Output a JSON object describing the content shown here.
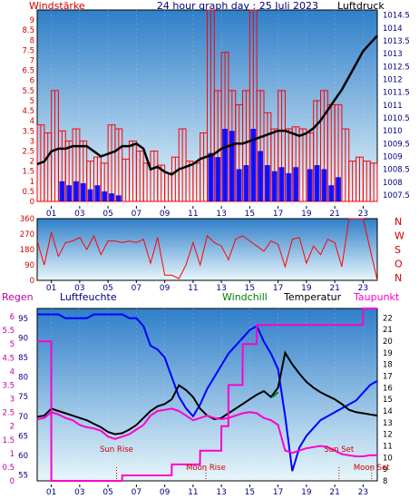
{
  "header": {
    "title": "24 hour graph day : 25 Juli 2023",
    "left_label": "Windstärke",
    "right_label": "Luftdruck"
  },
  "colors": {
    "panel_top": "#2f7fc9",
    "panel_bottom": "#e8f6fb",
    "red": "#ff0000",
    "blue": "#0000ff",
    "black": "#000000",
    "magenta": "#ff00cc",
    "green": "#008000",
    "darkred": "#cc0000",
    "axis_red": "#d00000",
    "axis_black": "#000080",
    "axis_magenta": "#c000a0"
  },
  "chart_data": [
    {
      "type": "line",
      "panel": "wind_pressure",
      "title": "24 hour graph day : 25 Juli 2023",
      "x_ticks": [
        "01",
        "03",
        "05",
        "07",
        "09",
        "11",
        "13",
        "15",
        "17",
        "19",
        "21",
        "23"
      ],
      "xlim": [
        0,
        24
      ],
      "y_left": {
        "label": "Windstärke",
        "ylim": [
          0,
          9.5
        ],
        "ticks": [
          "0",
          "0.5",
          "1",
          "1.5",
          "2",
          "2.5",
          "3",
          "3.5",
          "4",
          "4.5",
          "5",
          "5.5",
          "6",
          "6.5",
          "7",
          "7.5",
          "8",
          "8.5",
          "9"
        ]
      },
      "y_right": {
        "label": "Luftdruck",
        "ylim": [
          1007.25,
          1014.7
        ],
        "ticks": [
          "1007.5",
          "1008",
          "1008.5",
          "1009",
          "1009.5",
          "1010",
          "1010.5",
          "1011",
          "1011.5",
          "1012",
          "1012.5",
          "1013",
          "1013.5",
          "1014",
          "1014.5"
        ]
      },
      "series": [
        {
          "name": "Luftdruck",
          "color": "black",
          "x": [
            0.0,
            0.5,
            1.0,
            1.5,
            2.0,
            2.5,
            3.0,
            3.5,
            4.0,
            4.5,
            5.0,
            5.5,
            6.0,
            6.5,
            7.0,
            7.5,
            8.0,
            8.5,
            9.0,
            9.5,
            10.0,
            10.5,
            11.0,
            11.5,
            12.0,
            12.5,
            13.0,
            13.5,
            14.0,
            14.5,
            15.0,
            15.5,
            16.0,
            16.5,
            17.0,
            17.5,
            18.0,
            18.5,
            19.0,
            19.5,
            20.0,
            20.5,
            21.0,
            21.5,
            22.0,
            22.5,
            23.0,
            23.5,
            24.0
          ],
          "values": [
            1008.7,
            1008.8,
            1009.2,
            1009.3,
            1009.3,
            1009.4,
            1009.4,
            1009.4,
            1009.2,
            1009.0,
            1009.1,
            1009.2,
            1009.4,
            1009.4,
            1009.5,
            1009.3,
            1008.5,
            1008.6,
            1008.4,
            1008.3,
            1008.5,
            1008.6,
            1008.7,
            1008.9,
            1009.0,
            1009.1,
            1009.3,
            1009.4,
            1009.5,
            1009.5,
            1009.6,
            1009.7,
            1009.8,
            1009.9,
            1010.0,
            1010.0,
            1009.9,
            1009.8,
            1009.9,
            1010.1,
            1010.4,
            1010.8,
            1011.2,
            1011.6,
            1012.1,
            1012.6,
            1013.1,
            1013.4,
            1013.7
          ]
        },
        {
          "name": "Windstärke (Böen)",
          "color": "red",
          "x": [
            0.0,
            0.5,
            1.0,
            1.5,
            2.0,
            2.5,
            3.0,
            3.5,
            4.0,
            4.5,
            5.0,
            5.5,
            6.0,
            6.5,
            7.0,
            7.5,
            8.0,
            8.5,
            9.0,
            9.5,
            10.0,
            10.5,
            11.0,
            11.5,
            12.0,
            12.5,
            13.0,
            13.5,
            14.0,
            14.5,
            15.0,
            15.5,
            16.0,
            16.5,
            17.0,
            17.5,
            18.0,
            18.5,
            19.0,
            19.5,
            20.0,
            20.5,
            21.0,
            21.5,
            22.0,
            22.5,
            23.0,
            23.5
          ],
          "values": [
            3.8,
            3.4,
            5.5,
            3.5,
            3.0,
            3.6,
            3.0,
            2.0,
            2.2,
            1.9,
            3.8,
            3.6,
            2.1,
            3.0,
            2.5,
            1.9,
            2.5,
            1.8,
            1.4,
            2.2,
            3.6,
            2.0,
            1.9,
            3.4,
            9.5,
            5.5,
            7.4,
            5.5,
            4.8,
            5.5,
            9.5,
            5.5,
            4.4,
            3.6,
            5.5,
            3.6,
            3.7,
            3.6,
            3.4,
            5.0,
            5.5,
            4.8,
            4.8,
            3.6,
            2.0,
            2.2,
            2.0,
            1.9
          ]
        },
        {
          "name": "Windstärke (Mittel)",
          "color": "blue",
          "x": [
            0.0,
            0.5,
            1.0,
            1.5,
            2.0,
            2.5,
            3.0,
            3.5,
            4.0,
            4.5,
            5.0,
            5.5,
            6.0,
            6.5,
            7.0,
            7.5,
            8.0,
            8.5,
            9.0,
            9.5,
            10.0,
            10.5,
            11.0,
            11.5,
            12.0,
            12.5,
            13.0,
            13.5,
            14.0,
            14.5,
            15.0,
            15.5,
            16.0,
            16.5,
            17.0,
            17.5,
            18.0,
            18.5,
            19.0,
            19.5,
            20.0,
            20.5,
            21.0,
            21.5,
            22.0,
            22.5,
            23.0,
            23.5
          ],
          "values": [
            0,
            0,
            0,
            1.0,
            0.8,
            1.0,
            0.9,
            0.6,
            0.8,
            0.5,
            0.4,
            0.3,
            0,
            0,
            0,
            0,
            0,
            0,
            0,
            0,
            0,
            0,
            0,
            0,
            2.4,
            2.2,
            3.6,
            3.5,
            1.6,
            1.8,
            3.6,
            2.5,
            1.8,
            1.5,
            1.7,
            1.4,
            1.7,
            0,
            1.6,
            1.8,
            1.6,
            0.8,
            1.2,
            0,
            0,
            0,
            0,
            0
          ]
        }
      ]
    },
    {
      "type": "line",
      "panel": "wind_direction",
      "x_ticks": [
        "01",
        "03",
        "05",
        "07",
        "09",
        "11",
        "13",
        "15",
        "17",
        "19",
        "21",
        "23"
      ],
      "xlim": [
        0,
        24
      ],
      "y_left": {
        "ylim": [
          0,
          360
        ],
        "ticks": [
          "0",
          "90",
          "180",
          "270",
          "360"
        ]
      },
      "y_right": {
        "ticks": [
          "N",
          "W",
          "S",
          "O",
          "N"
        ]
      },
      "series": [
        {
          "name": "Windrichtung",
          "color": "red",
          "x": [
            0.0,
            0.5,
            1.0,
            1.5,
            2.0,
            2.5,
            3.0,
            3.5,
            4.0,
            4.5,
            5.0,
            5.5,
            6.0,
            6.5,
            7.0,
            7.5,
            8.0,
            8.5,
            9.0,
            9.5,
            10.0,
            10.5,
            11.0,
            11.5,
            12.0,
            12.5,
            13.0,
            13.5,
            14.0,
            14.5,
            15.0,
            15.5,
            16.0,
            16.5,
            17.0,
            17.5,
            18.0,
            18.5,
            19.0,
            19.5,
            20.0,
            20.5,
            21.0,
            21.5,
            22.0,
            22.5,
            23.0,
            23.5,
            24.0
          ],
          "values": [
            230,
            90,
            280,
            140,
            220,
            230,
            250,
            180,
            260,
            150,
            230,
            230,
            220,
            230,
            220,
            240,
            100,
            250,
            30,
            30,
            10,
            90,
            220,
            90,
            260,
            220,
            200,
            120,
            240,
            260,
            230,
            200,
            170,
            230,
            210,
            80,
            240,
            250,
            100,
            200,
            150,
            240,
            220,
            80,
            360,
            360,
            360,
            180,
            0
          ]
        }
      ]
    },
    {
      "type": "line",
      "panel": "humidity_temperature",
      "x_ticks": [
        "01",
        "03",
        "05",
        "07",
        "09",
        "11",
        "13",
        "15",
        "17",
        "19",
        "21",
        "23"
      ],
      "xlim": [
        0,
        24
      ],
      "legend": [
        "Regen",
        "Luftfeuchte",
        "Windchill",
        "Temperatur",
        "Taupunkt"
      ],
      "y_left_outer": {
        "label": "Regen",
        "ylim": [
          0,
          6.3
        ],
        "ticks": [
          "0",
          "0.5",
          "1",
          "1.5",
          "2",
          "2.5",
          "3",
          "3.5",
          "4",
          "4.5",
          "5",
          "5.5",
          "6"
        ]
      },
      "y_left_inner": {
        "label": "Luftfeuchte",
        "ylim": [
          53.5,
          97.5
        ],
        "ticks": [
          "55",
          "60",
          "65",
          "70",
          "75",
          "80",
          "85",
          "90",
          "95"
        ]
      },
      "y_right": {
        "label": "Temperatur",
        "ylim": [
          8,
          22.8
        ],
        "ticks": [
          "8",
          "9",
          "10",
          "11",
          "12",
          "13",
          "14",
          "15",
          "16",
          "17",
          "18",
          "19",
          "20",
          "21",
          "22"
        ]
      },
      "annotations": [
        {
          "text": "Sun Rise",
          "x": 5.6
        },
        {
          "text": "Moon Rise",
          "x": 11.9
        },
        {
          "text": "Sun Set",
          "x": 21.3
        },
        {
          "text": "Moon Set",
          "x": 23.6
        }
      ],
      "series": [
        {
          "name": "Luftfeuchte",
          "color": "blue",
          "axis": "humidity",
          "x": [
            0.0,
            0.5,
            1.0,
            1.5,
            2.0,
            2.5,
            3.0,
            3.5,
            4.0,
            4.5,
            5.0,
            5.5,
            6.0,
            6.5,
            7.0,
            7.5,
            8.0,
            8.5,
            9.0,
            9.5,
            10.0,
            10.5,
            11.0,
            11.5,
            12.0,
            12.5,
            13.0,
            13.5,
            14.0,
            14.5,
            15.0,
            15.5,
            16.0,
            16.5,
            17.0,
            17.5,
            18.0,
            18.5,
            19.0,
            19.5,
            20.0,
            20.5,
            21.0,
            21.5,
            22.0,
            22.5,
            23.0,
            23.5,
            24.0
          ],
          "values": [
            96,
            96,
            96,
            96,
            95,
            95,
            95,
            95,
            96,
            96,
            96,
            96,
            96,
            95,
            95,
            93,
            88,
            87,
            85,
            80,
            75,
            72,
            70,
            73,
            77,
            80,
            83,
            86,
            88,
            90,
            92,
            93,
            89,
            86,
            82,
            70,
            56,
            62,
            65,
            67,
            69,
            70,
            71,
            72,
            73,
            74,
            76,
            78,
            79
          ]
        },
        {
          "name": "Temperatur",
          "color": "black",
          "axis": "temperature",
          "x": [
            0.0,
            0.5,
            1.0,
            1.5,
            2.0,
            2.5,
            3.0,
            3.5,
            4.0,
            4.5,
            5.0,
            5.5,
            6.0,
            6.5,
            7.0,
            7.5,
            8.0,
            8.5,
            9.0,
            9.5,
            10.0,
            10.5,
            11.0,
            11.5,
            12.0,
            12.5,
            13.0,
            13.5,
            14.0,
            14.5,
            15.0,
            15.5,
            16.0,
            16.5,
            17.0,
            17.5,
            18.0,
            18.5,
            19.0,
            19.5,
            20.0,
            20.5,
            21.0,
            21.5,
            22.0,
            22.5,
            23.0,
            23.5,
            24.0
          ],
          "values": [
            13.5,
            13.6,
            14.2,
            14.0,
            13.8,
            13.6,
            13.4,
            13.2,
            12.9,
            12.6,
            12.2,
            12.0,
            12.1,
            12.4,
            12.8,
            13.4,
            14.0,
            14.4,
            14.6,
            15.0,
            16.2,
            15.8,
            15.2,
            14.2,
            13.6,
            13.3,
            13.4,
            13.8,
            14.2,
            14.6,
            15.0,
            15.4,
            15.7,
            15.2,
            16.0,
            19.0,
            18.0,
            17.2,
            16.5,
            16.0,
            15.6,
            15.3,
            15.0,
            14.6,
            14.1,
            13.9,
            13.8,
            13.7,
            13.6
          ]
        },
        {
          "name": "Taupunkt",
          "color": "magenta",
          "axis": "temperature",
          "x": [
            0.0,
            0.5,
            1.0,
            1.5,
            2.0,
            2.5,
            3.0,
            3.5,
            4.0,
            4.5,
            5.0,
            5.5,
            6.0,
            6.5,
            7.0,
            7.5,
            8.0,
            8.5,
            9.0,
            9.5,
            10.0,
            10.5,
            11.0,
            11.5,
            12.0,
            12.5,
            13.0,
            13.5,
            14.0,
            14.5,
            15.0,
            15.5,
            16.0,
            16.5,
            17.0,
            17.5,
            18.0,
            18.5,
            19.0,
            19.5,
            20.0,
            20.5,
            21.0,
            21.5,
            22.0,
            22.5,
            23.0,
            23.5,
            24.0
          ],
          "values": [
            13.3,
            13.4,
            13.9,
            13.7,
            13.4,
            13.2,
            12.8,
            12.6,
            12.5,
            12.3,
            11.8,
            11.6,
            11.8,
            12.0,
            12.4,
            12.8,
            13.6,
            14.0,
            14.1,
            14.2,
            14.0,
            13.6,
            13.2,
            13.4,
            13.6,
            13.4,
            13.3,
            13.4,
            13.6,
            13.8,
            13.9,
            13.8,
            13.4,
            13.2,
            12.8,
            10.6,
            10.4,
            10.6,
            10.8,
            10.9,
            11.0,
            10.9,
            10.6,
            10.3,
            10.2,
            10.1,
            10.1,
            10.2,
            10.2
          ]
        },
        {
          "name": "Windchill",
          "color": "green",
          "axis": "temperature",
          "x": [
            16.6,
            16.8,
            17.0
          ],
          "values": [
            15.2,
            15.4,
            15.6
          ]
        },
        {
          "name": "Regen",
          "color": "magenta",
          "axis": "rain",
          "x": [
            0.0,
            0.99,
            1.0,
            5.99,
            6.0,
            9.49,
            9.5,
            11.49,
            11.5,
            12.99,
            13.0,
            13.49,
            13.5,
            14.49,
            14.5,
            15.49,
            15.5,
            22.99,
            23.0,
            24.0
          ],
          "values": [
            5.1,
            5.1,
            0.0,
            0.0,
            0.2,
            0.2,
            0.6,
            0.6,
            1.1,
            1.1,
            2.0,
            2.0,
            3.5,
            3.5,
            5.0,
            5.0,
            5.7,
            5.7,
            6.3,
            6.3
          ]
        }
      ]
    }
  ]
}
